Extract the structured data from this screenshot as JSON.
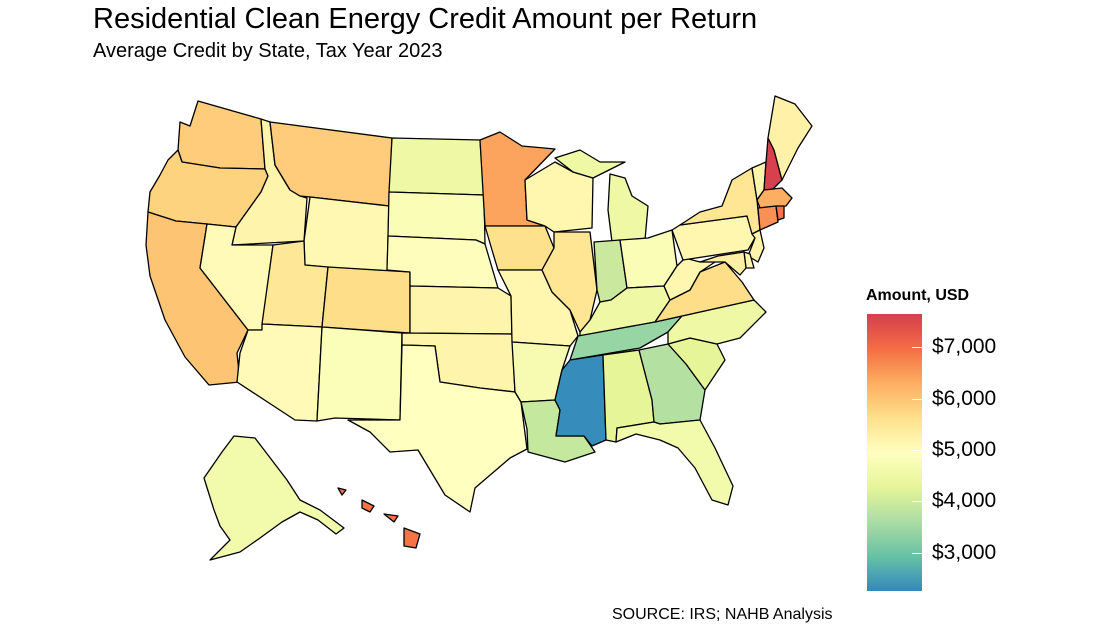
{
  "title": "Residential Clean Energy Credit Amount per Return",
  "subtitle": "Average Credit by State, Tax Year 2023",
  "caption": "SOURCE: IRS; NAHB Analysis",
  "legend": {
    "title": "Amount, USD",
    "min": 2250,
    "max": 7650,
    "ticks": [
      {
        "value": 7000,
        "label": "$7,000"
      },
      {
        "value": 6000,
        "label": "$6,000"
      },
      {
        "value": 5000,
        "label": "$5,000"
      },
      {
        "value": 4000,
        "label": "$4,000"
      },
      {
        "value": 3000,
        "label": "$3,000"
      }
    ],
    "palette": [
      "#3288bd",
      "#66c2a5",
      "#abdda4",
      "#e6f598",
      "#ffffbf",
      "#fee08b",
      "#fdae61",
      "#f46d43",
      "#d53e4f"
    ]
  },
  "map_data": {
    "type": "choropleth",
    "states": {
      "WA": 5900,
      "OR": 5800,
      "CA": 6000,
      "ID": 5200,
      "NV": 5050,
      "MT": 5900,
      "WY": 5100,
      "UT": 5450,
      "AZ": 5050,
      "CO": 5650,
      "NM": 4850,
      "ND": 4500,
      "SD": 4800,
      "NE": 5000,
      "KS": 5200,
      "OK": 5200,
      "TX": 4950,
      "MN": 6400,
      "IA": 5600,
      "MO": 5150,
      "AR": 4700,
      "LA": 3900,
      "WI": 5150,
      "IL": 5500,
      "MI": 4500,
      "IN": 3950,
      "OH": 4800,
      "KY": 4500,
      "TN": 3400,
      "MS": 2300,
      "AL": 4300,
      "GA": 3700,
      "FL": 4600,
      "SC": 4300,
      "NC": 4500,
      "VA": 5650,
      "WV": 5150,
      "PA": 5150,
      "NY": 5500,
      "VT": 5200,
      "NH": 7600,
      "ME": 5250,
      "MA": 6300,
      "CT": 6600,
      "RI": 6900,
      "NJ": 5200,
      "DE": 5200,
      "MD": 5300,
      "AK": 4600,
      "HI": 6900
    }
  }
}
